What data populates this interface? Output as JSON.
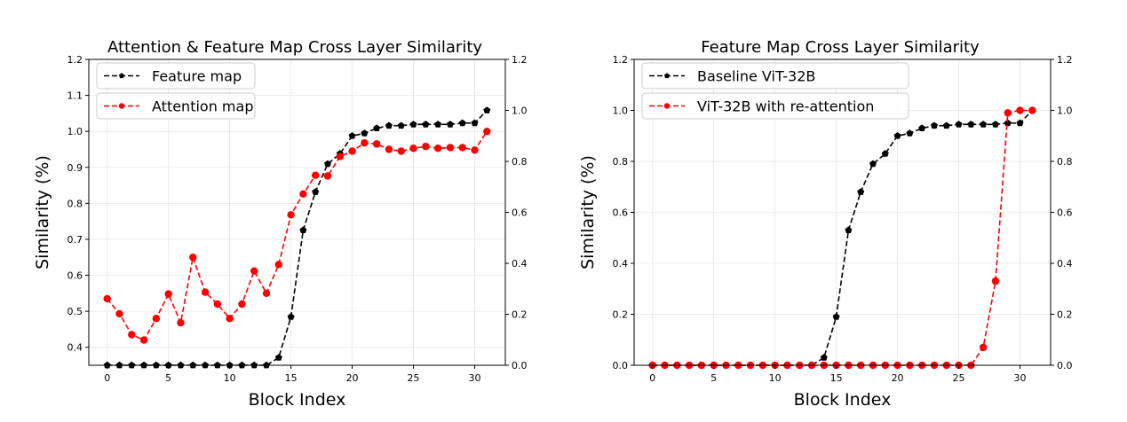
{
  "chart_data": [
    {
      "type": "line",
      "title": "Attention & Feature Map Cross Layer Similarity",
      "xlabel": "Block Index",
      "ylabel": "Similarity (%)",
      "xlim": [
        -1.5,
        32.5
      ],
      "ylim_left": [
        0.35,
        1.2
      ],
      "ylim_right": [
        0.0,
        1.2
      ],
      "x_ticks": [
        0,
        5,
        10,
        15,
        20,
        25,
        30
      ],
      "y_ticks_left": [
        0.4,
        0.5,
        0.6,
        0.7,
        0.8,
        0.9,
        1.0,
        1.1,
        1.2
      ],
      "y_ticks_right": [
        0.0,
        0.2,
        0.4,
        0.6,
        0.8,
        1.0,
        1.2
      ],
      "grid": true,
      "legend_position": "top-left",
      "series": [
        {
          "name": "Feature map",
          "axis": "right",
          "color": "#000000",
          "marker": "pentagon",
          "x": [
            0,
            1,
            2,
            3,
            4,
            5,
            6,
            7,
            8,
            9,
            10,
            11,
            12,
            13,
            14,
            15,
            16,
            17,
            18,
            19,
            20,
            21,
            22,
            23,
            24,
            25,
            26,
            27,
            28,
            29,
            30,
            31
          ],
          "values": [
            0,
            0,
            0,
            0,
            0,
            0,
            0,
            0,
            0,
            0,
            0,
            0,
            0,
            0,
            0.03,
            0.19,
            0.53,
            0.68,
            0.79,
            0.83,
            0.9,
            0.91,
            0.93,
            0.94,
            0.94,
            0.945,
            0.945,
            0.945,
            0.945,
            0.95,
            0.95,
            1.0
          ]
        },
        {
          "name": "Attention map",
          "axis": "left",
          "color": "#ff0000",
          "marker": "circle",
          "x": [
            0,
            1,
            2,
            3,
            4,
            5,
            6,
            7,
            8,
            9,
            10,
            11,
            12,
            13,
            14,
            15,
            16,
            17,
            18,
            19,
            20,
            21,
            22,
            23,
            24,
            25,
            26,
            27,
            28,
            29,
            30,
            31
          ],
          "values": [
            0.535,
            0.493,
            0.435,
            0.42,
            0.48,
            0.548,
            0.468,
            0.65,
            0.553,
            0.52,
            0.48,
            0.52,
            0.612,
            0.55,
            0.63,
            0.768,
            0.826,
            0.878,
            0.876,
            0.93,
            0.945,
            0.968,
            0.965,
            0.95,
            0.945,
            0.953,
            0.958,
            0.953,
            0.955,
            0.955,
            0.948,
            1.0
          ]
        }
      ]
    },
    {
      "type": "line",
      "title": "Feature Map Cross Layer Similarity",
      "xlabel": "Block Index",
      "ylabel": "Similarity (%)",
      "xlim": [
        -1.5,
        32.5
      ],
      "ylim_left": [
        0.0,
        1.2
      ],
      "ylim_right": [
        0.0,
        1.2
      ],
      "x_ticks": [
        0,
        5,
        10,
        15,
        20,
        25,
        30
      ],
      "y_ticks_left": [
        0.0,
        0.2,
        0.4,
        0.6,
        0.8,
        1.0,
        1.2
      ],
      "y_ticks_right": [
        0.0,
        0.2,
        0.4,
        0.6,
        0.8,
        1.0,
        1.2
      ],
      "grid": true,
      "legend_position": "top-left",
      "series": [
        {
          "name": "Baseline ViT-32B",
          "axis": "left",
          "color": "#000000",
          "marker": "pentagon",
          "x": [
            0,
            1,
            2,
            3,
            4,
            5,
            6,
            7,
            8,
            9,
            10,
            11,
            12,
            13,
            14,
            15,
            16,
            17,
            18,
            19,
            20,
            21,
            22,
            23,
            24,
            25,
            26,
            27,
            28,
            29,
            30,
            31
          ],
          "values": [
            0,
            0,
            0,
            0,
            0,
            0,
            0,
            0,
            0,
            0,
            0,
            0,
            0,
            0,
            0.03,
            0.19,
            0.53,
            0.68,
            0.79,
            0.83,
            0.9,
            0.91,
            0.93,
            0.94,
            0.94,
            0.945,
            0.945,
            0.945,
            0.945,
            0.95,
            0.95,
            1.0
          ]
        },
        {
          "name": "ViT-32B with re-attention",
          "axis": "left",
          "color": "#ff0000",
          "marker": "circle",
          "x": [
            0,
            1,
            2,
            3,
            4,
            5,
            6,
            7,
            8,
            9,
            10,
            11,
            12,
            13,
            14,
            15,
            16,
            17,
            18,
            19,
            20,
            21,
            22,
            23,
            24,
            25,
            26,
            27,
            28,
            29,
            30,
            31
          ],
          "values": [
            0,
            0,
            0,
            0,
            0,
            0,
            0,
            0,
            0,
            0,
            0,
            0,
            0,
            0,
            0,
            0,
            0,
            0,
            0,
            0,
            0,
            0,
            0,
            0,
            0,
            0,
            0,
            0.07,
            0.33,
            0.99,
            1.0,
            1.0
          ]
        }
      ]
    }
  ]
}
